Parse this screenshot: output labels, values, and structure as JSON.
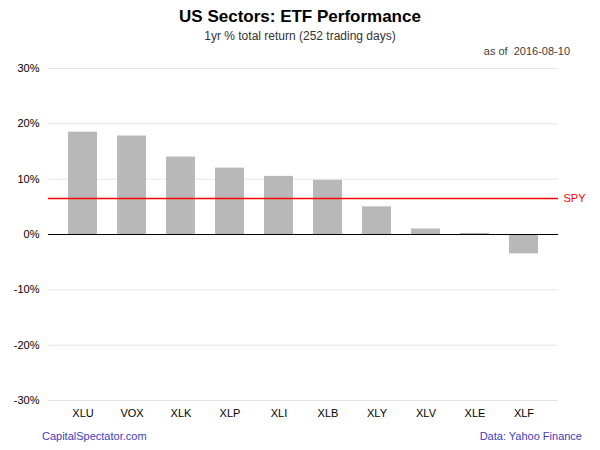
{
  "chart_data": {
    "type": "bar",
    "title": "US Sectors: ETF Performance",
    "subtitle": "1yr % total return (252 trading days)",
    "annotations": [
      "as of  2016-08-10"
    ],
    "footer": [
      "CapitalSpectator.com",
      "Data: Yahoo Finance"
    ],
    "categories": [
      "XLU",
      "VOX",
      "XLK",
      "XLP",
      "XLI",
      "XLB",
      "XLY",
      "XLV",
      "XLE",
      "XLF"
    ],
    "values": [
      18.5,
      17.8,
      14.0,
      12.0,
      10.5,
      9.8,
      5.0,
      1.0,
      0.2,
      -3.5
    ],
    "color": "#b8b8b8",
    "reference_lines": [
      {
        "label": "SPY",
        "value": 6.5,
        "color": "#ff0000"
      }
    ],
    "ylim": [
      -30,
      30
    ],
    "yticks": [
      {
        "value": -30,
        "label": "-30%"
      },
      {
        "value": -20,
        "label": "-20%"
      },
      {
        "value": -10,
        "label": "-10%"
      },
      {
        "value": 0,
        "label": "0%"
      },
      {
        "value": 10,
        "label": "10%"
      },
      {
        "value": 20,
        "label": "20%"
      },
      {
        "value": 30,
        "label": "30%"
      }
    ],
    "grid": true
  }
}
